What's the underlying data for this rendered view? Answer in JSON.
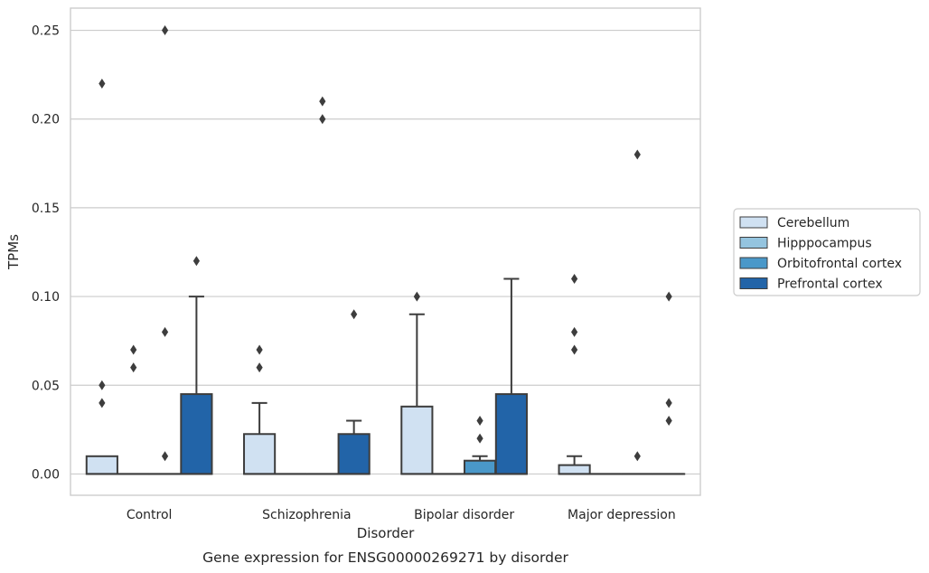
{
  "chart_data": {
    "type": "box",
    "caption": "Gene expression for ENSG00000269271 by disorder",
    "xlabel": "Disorder",
    "ylabel": "TPMs",
    "ylim": [
      -0.012,
      0.2625
    ],
    "yticks": [
      0.0,
      0.05,
      0.1,
      0.15,
      0.2,
      0.25
    ],
    "ytick_labels": [
      "0.00",
      "0.05",
      "0.10",
      "0.15",
      "0.20",
      "0.25"
    ],
    "grid": true,
    "legend_position": "right",
    "categories": [
      "Control",
      "Schizophrenia",
      "Bipolar disorder",
      "Major depression"
    ],
    "series": [
      {
        "name": "Cerebellum",
        "color": "#d0e1f2",
        "boxes": [
          {
            "q1": 0,
            "median": 0,
            "q3": 0.01,
            "whisker_low": 0,
            "whisker_high": 0.01,
            "outliers": [
              0.04,
              0.05,
              0.22
            ]
          },
          {
            "q1": 0,
            "median": 0,
            "q3": 0.0225,
            "whisker_low": 0,
            "whisker_high": 0.04,
            "outliers": [
              0.06,
              0.07
            ]
          },
          {
            "q1": 0,
            "median": 0,
            "q3": 0.038,
            "whisker_low": 0,
            "whisker_high": 0.09,
            "outliers": [
              0.1
            ]
          },
          {
            "q1": 0,
            "median": 0,
            "q3": 0.005,
            "whisker_low": 0,
            "whisker_high": 0.01,
            "outliers": [
              0.07,
              0.08,
              0.11
            ]
          }
        ]
      },
      {
        "name": "Hipppocampus",
        "color": "#94c4df",
        "boxes": [
          {
            "q1": 0,
            "median": 0,
            "q3": 0,
            "whisker_low": 0,
            "whisker_high": 0,
            "outliers": [
              0.06,
              0.07
            ]
          },
          {
            "q1": 0,
            "median": 0,
            "q3": 0,
            "whisker_low": 0,
            "whisker_high": 0,
            "outliers": []
          },
          {
            "q1": 0,
            "median": 0,
            "q3": 0,
            "whisker_low": 0,
            "whisker_high": 0,
            "outliers": []
          },
          {
            "q1": 0,
            "median": 0,
            "q3": 0,
            "whisker_low": 0,
            "whisker_high": 0,
            "outliers": []
          }
        ]
      },
      {
        "name": "Orbitofrontal cortex",
        "color": "#4a98c9",
        "boxes": [
          {
            "q1": 0,
            "median": 0,
            "q3": 0,
            "whisker_low": 0,
            "whisker_high": 0,
            "outliers": [
              0.01,
              0.08,
              0.25
            ]
          },
          {
            "q1": 0,
            "median": 0,
            "q3": 0,
            "whisker_low": 0,
            "whisker_high": 0,
            "outliers": [
              0.2,
              0.21
            ]
          },
          {
            "q1": 0,
            "median": 0,
            "q3": 0.0075,
            "whisker_low": 0,
            "whisker_high": 0.01,
            "outliers": [
              0.02,
              0.03
            ]
          },
          {
            "q1": 0,
            "median": 0,
            "q3": 0,
            "whisker_low": 0,
            "whisker_high": 0,
            "outliers": [
              0.01,
              0.18
            ]
          }
        ]
      },
      {
        "name": "Prefrontal cortex",
        "color": "#2264a8",
        "boxes": [
          {
            "q1": 0,
            "median": 0,
            "q3": 0.045,
            "whisker_low": 0,
            "whisker_high": 0.1,
            "outliers": [
              0.12
            ]
          },
          {
            "q1": 0,
            "median": 0,
            "q3": 0.0225,
            "whisker_low": 0,
            "whisker_high": 0.03,
            "outliers": [
              0.09
            ]
          },
          {
            "q1": 0,
            "median": 0,
            "q3": 0.045,
            "whisker_low": 0,
            "whisker_high": 0.11,
            "outliers": []
          },
          {
            "q1": 0,
            "median": 0,
            "q3": 0,
            "whisker_low": 0,
            "whisker_high": 0,
            "outliers": [
              0.03,
              0.04,
              0.1
            ]
          }
        ]
      }
    ]
  }
}
